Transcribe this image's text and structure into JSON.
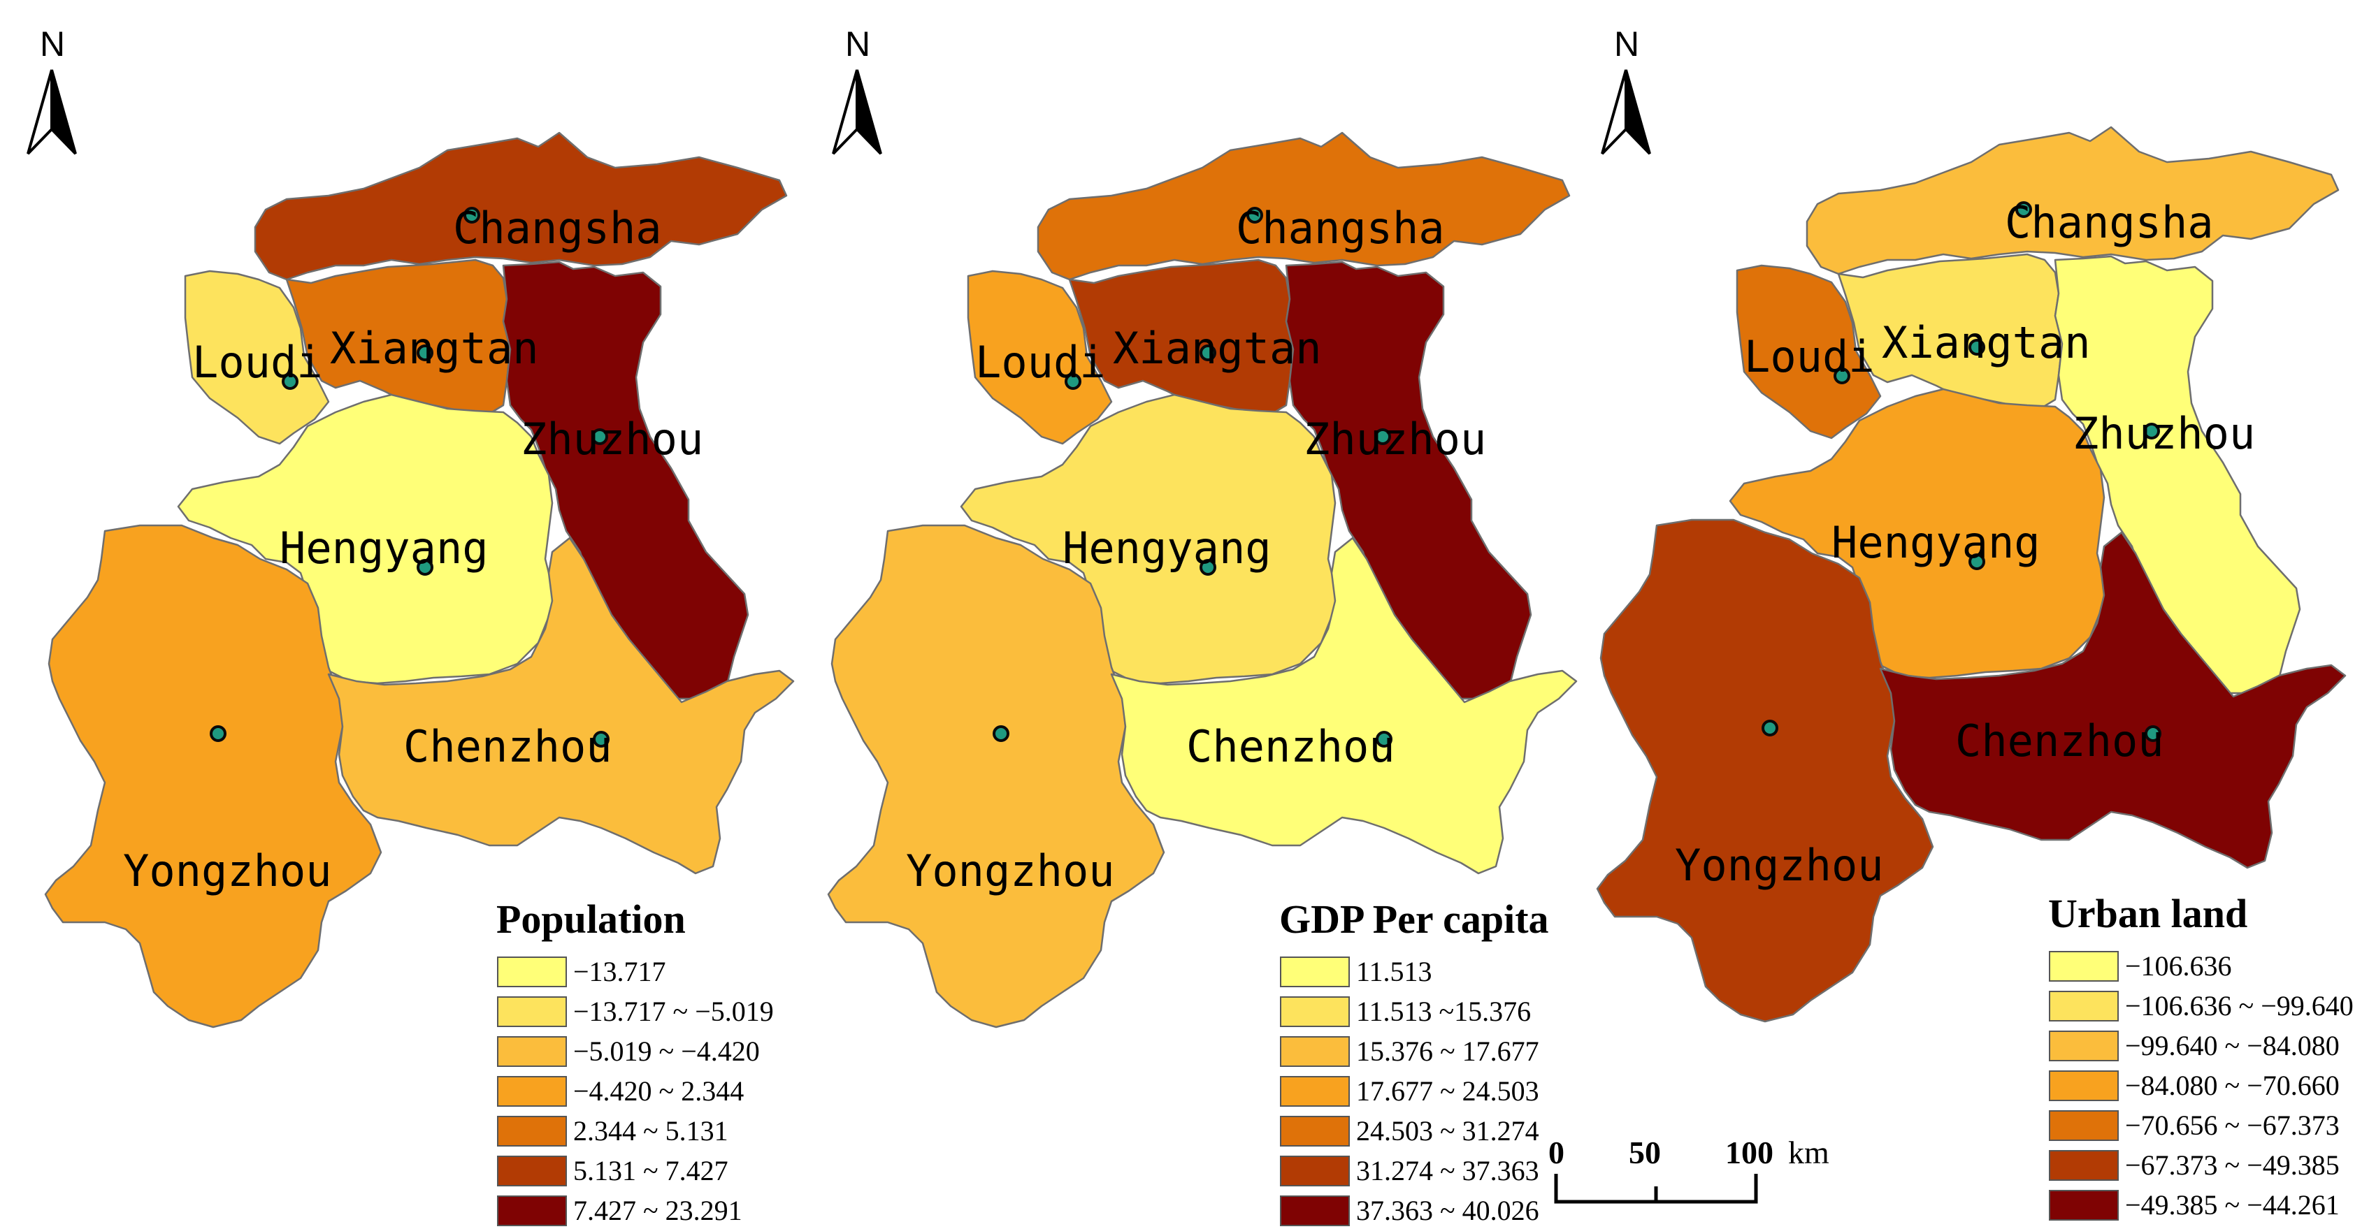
{
  "colors": [
    "#ffff78",
    "#fde35d",
    "#fbbd3c",
    "#f8a21f",
    "#df7209",
    "#b23b04",
    "#7f0303"
  ],
  "panels": [
    {
      "id": "population",
      "legend_title": "Population",
      "classes": [
        "−13.717",
        "−13.717 ~ −5.019",
        "−5.019 ~ −4.420",
        "−4.420 ~ 2.344",
        "2.344 ~ 5.131",
        "5.131 ~ 7.427",
        "7.427 ~ 23.291"
      ],
      "regions": {
        "Changsha": "5.131 ~ 7.427",
        "Loudi": "−13.717 ~ −5.019",
        "Xiangtan": "2.344 ~ 5.131",
        "Zhuzhou": "7.427 ~ 23.291",
        "Hengyang": "−13.717",
        "Yongzhou": "−4.420 ~ 2.344",
        "Chenzhou": "−5.019 ~ −4.420"
      }
    },
    {
      "id": "gdp",
      "legend_title": "GDP Per capita",
      "classes": [
        "11.513",
        "11.513 ~15.376",
        "15.376 ~ 17.677",
        "17.677 ~ 24.503",
        "24.503 ~ 31.274",
        "31.274 ~ 37.363",
        "37.363 ~ 40.026"
      ],
      "regions": {
        "Changsha": "24.503 ~ 31.274",
        "Loudi": "17.677 ~ 24.503",
        "Xiangtan": "31.274 ~ 37.363",
        "Zhuzhou": "37.363 ~ 40.026",
        "Hengyang": "11.513 ~15.376",
        "Yongzhou": "15.376 ~ 17.677",
        "Chenzhou": "11.513"
      }
    },
    {
      "id": "urban",
      "legend_title": "Urban land",
      "classes": [
        "−106.636",
        "−106.636 ~ −99.640",
        "−99.640 ~ −84.080",
        "−84.080 ~ −70.660",
        "−70.656 ~ −67.373",
        "−67.373 ~ −49.385",
        "−49.385 ~ −44.261"
      ],
      "regions": {
        "Changsha": "−99.640 ~ −84.080",
        "Loudi": "−70.656 ~ −67.373",
        "Xiangtan": "−106.636 ~ −99.640",
        "Zhuzhou": "−106.636",
        "Hengyang": "−84.080 ~ −70.660",
        "Yongzhou": "−67.373 ~ −49.385",
        "Chenzhou": "−49.385 ~ −44.261"
      }
    }
  ],
  "city_order": [
    "Changsha",
    "Loudi",
    "Xiangtan",
    "Zhuzhou",
    "Hengyang",
    "Yongzhou",
    "Chenzhou"
  ],
  "north_label": "N",
  "scale_bar": {
    "ticks": [
      "0",
      "50",
      "100"
    ],
    "unit": "km"
  }
}
